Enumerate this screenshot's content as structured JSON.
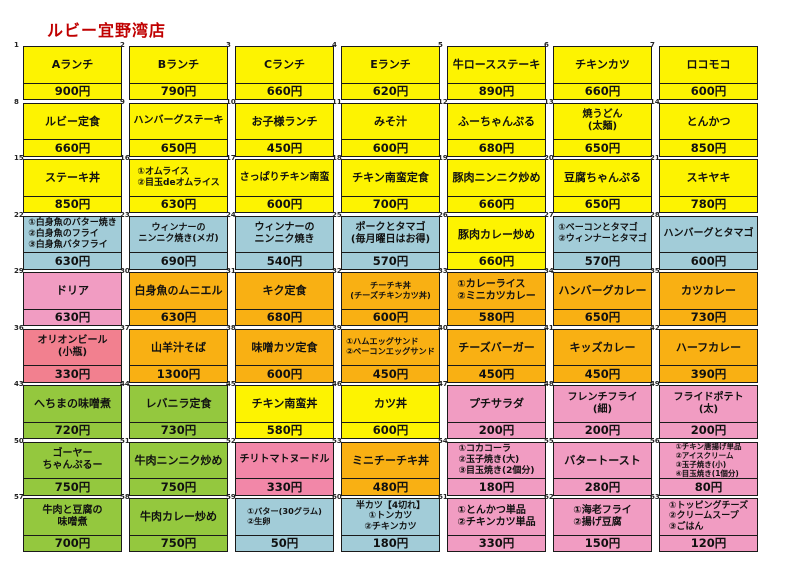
{
  "title": "ルビー宜野湾店",
  "palette": {
    "title_color": "#c00000",
    "border_color": "#1a1a1a",
    "yellow": "#fdf301",
    "cyan": "#a2ccd8",
    "orange": "#f9b013",
    "green": "#94c83e",
    "pink": "#f19cc2",
    "salmon": "#f2808f",
    "hotpink": "#f287a8"
  },
  "cells": [
    {
      "no": 1,
      "name": "Aランチ",
      "price": "900円",
      "color": "yellow"
    },
    {
      "no": 2,
      "name": "Bランチ",
      "price": "790円",
      "color": "yellow"
    },
    {
      "no": 3,
      "name": "Cランチ",
      "price": "660円",
      "color": "yellow"
    },
    {
      "no": 4,
      "name": "Eランチ",
      "price": "620円",
      "color": "yellow"
    },
    {
      "no": 5,
      "name": "牛ロースステーキ",
      "price": "890円",
      "color": "yellow"
    },
    {
      "no": 6,
      "name": "チキンカツ",
      "price": "660円",
      "color": "yellow"
    },
    {
      "no": 7,
      "name": "ロコモコ",
      "price": "600円",
      "color": "yellow"
    },
    {
      "no": 8,
      "name": "ルビー定食",
      "price": "660円",
      "color": "yellow"
    },
    {
      "no": 9,
      "name": "ハンバーグステーキ",
      "price": "650円",
      "color": "yellow"
    },
    {
      "no": 10,
      "name": "お子様ランチ",
      "price": "450円",
      "color": "yellow"
    },
    {
      "no": 11,
      "name": "みそ汁",
      "price": "600円",
      "color": "yellow"
    },
    {
      "no": 12,
      "name": "ふーちゃんぷる",
      "price": "680円",
      "color": "yellow"
    },
    {
      "no": 13,
      "name": "焼うどん\n(太麺)",
      "price": "650円",
      "color": "yellow"
    },
    {
      "no": 14,
      "name": "とんかつ",
      "price": "850円",
      "color": "yellow"
    },
    {
      "no": 15,
      "name": "ステーキ丼",
      "price": "850円",
      "color": "yellow"
    },
    {
      "no": 16,
      "name": "①オムライス\n②目玉deオムライス",
      "price": "630円",
      "color": "yellow"
    },
    {
      "no": 17,
      "name": "さっぱりチキン南蛮",
      "price": "600円",
      "color": "yellow"
    },
    {
      "no": 18,
      "name": "チキン南蛮定食",
      "price": "700円",
      "color": "yellow"
    },
    {
      "no": 19,
      "name": "豚肉ニンニク炒め",
      "price": "660円",
      "color": "yellow"
    },
    {
      "no": 20,
      "name": "豆腐ちゃんぷる",
      "price": "650円",
      "color": "yellow"
    },
    {
      "no": 21,
      "name": "スキヤキ",
      "price": "780円",
      "color": "yellow"
    },
    {
      "no": 22,
      "name": "①白身魚のバター焼き\n②白身魚のフライ\n③白身魚バタフライ",
      "price": "630円",
      "color": "cyan"
    },
    {
      "no": 23,
      "name": "ウィンナーの\nニンニク焼き(メガ)",
      "price": "690円",
      "color": "cyan"
    },
    {
      "no": 24,
      "name": "ウィンナーの\nニンニク焼き",
      "price": "540円",
      "color": "cyan"
    },
    {
      "no": 25,
      "name": "ポークとタマゴ\n(毎月曜日はお得)",
      "price": "570円",
      "color": "cyan"
    },
    {
      "no": 26,
      "name": "豚肉カレー炒め",
      "price": "660円",
      "color": "yellow"
    },
    {
      "no": 27,
      "name": "①ベーコンとタマゴ\n②ウィンナーとタマゴ",
      "price": "570円",
      "color": "cyan"
    },
    {
      "no": 28,
      "name": "ハンバーグとタマゴ",
      "price": "600円",
      "color": "cyan"
    },
    {
      "no": 29,
      "name": "ドリア",
      "price": "630円",
      "color": "pink"
    },
    {
      "no": 30,
      "name": "白身魚のムニエル",
      "price": "630円",
      "color": "orange"
    },
    {
      "no": 31,
      "name": "キク定食",
      "price": "680円",
      "color": "orange"
    },
    {
      "no": 32,
      "name": "チーチキ丼\n(チーズチキンカツ丼)",
      "price": "600円",
      "color": "orange"
    },
    {
      "no": 33,
      "name": "①カレーライス\n②ミニカツカレー",
      "price": "580円",
      "color": "orange"
    },
    {
      "no": 34,
      "name": "ハンバーグカレー",
      "price": "650円",
      "color": "orange"
    },
    {
      "no": 35,
      "name": "カツカレー",
      "price": "730円",
      "color": "orange"
    },
    {
      "no": 36,
      "name": "オリオンビール\n(小瓶)",
      "price": "330円",
      "color": "salmon"
    },
    {
      "no": 37,
      "name": "山羊汁そば",
      "price": "1300円",
      "color": "orange"
    },
    {
      "no": 38,
      "name": "味噌カツ定食",
      "price": "600円",
      "color": "orange"
    },
    {
      "no": 39,
      "name": "①ハムエッグサンド\n②ベーコンエッグサンド",
      "price": "450円",
      "color": "orange"
    },
    {
      "no": 40,
      "name": "チーズバーガー",
      "price": "450円",
      "color": "orange"
    },
    {
      "no": 41,
      "name": "キッズカレー",
      "price": "450円",
      "color": "orange"
    },
    {
      "no": 42,
      "name": "ハーフカレー",
      "price": "390円",
      "color": "orange"
    },
    {
      "no": 43,
      "name": "へちまの味噌煮",
      "price": "720円",
      "color": "green"
    },
    {
      "no": 44,
      "name": "レバニラ定食",
      "price": "730円",
      "color": "green"
    },
    {
      "no": 45,
      "name": "チキン南蛮丼",
      "price": "580円",
      "color": "yellow"
    },
    {
      "no": 46,
      "name": "カツ丼",
      "price": "600円",
      "color": "yellow"
    },
    {
      "no": 47,
      "name": "プチサラダ",
      "price": "200円",
      "color": "pink"
    },
    {
      "no": 48,
      "name": "フレンチフライ\n(細)",
      "price": "200円",
      "color": "pink"
    },
    {
      "no": 49,
      "name": "フライドポテト\n(太)",
      "price": "200円",
      "color": "pink"
    },
    {
      "no": 50,
      "name": "ゴーヤー\nちゃんぷるー",
      "price": "750円",
      "color": "green"
    },
    {
      "no": 51,
      "name": "牛肉ニンニク炒め",
      "price": "750円",
      "color": "green"
    },
    {
      "no": 52,
      "name": "チリトマトヌードル",
      "price": "330円",
      "color": "hotpink"
    },
    {
      "no": 53,
      "name": "ミニチーチキ丼",
      "price": "480円",
      "color": "orange"
    },
    {
      "no": 54,
      "name": "①コカコーラ\n②玉子焼き(大)\n③目玉焼き(2個分)",
      "price": "180円",
      "color": "pink"
    },
    {
      "no": 55,
      "name": "バタートースト",
      "price": "280円",
      "color": "pink"
    },
    {
      "no": 56,
      "name": "①チキン唐揚げ単品\n②アイスクリーム\n③玉子焼き(小)\n④目玉焼き(1個分)",
      "price": "80円",
      "color": "pink"
    },
    {
      "no": 57,
      "name": "牛肉と豆腐の\n味噌煮",
      "price": "700円",
      "color": "green"
    },
    {
      "no": 58,
      "name": "牛肉カレー炒め",
      "price": "750円",
      "color": "green"
    },
    {
      "no": 59,
      "name": "①バター(30グラム)\n②生卵",
      "price": "50円",
      "color": "cyan"
    },
    {
      "no": 60,
      "name": "半カツ【4切れ】\n①トンカツ\n②チキンカツ",
      "price": "180円",
      "color": "cyan"
    },
    {
      "no": 61,
      "name": "①とんかつ単品\n②チキンカツ単品",
      "price": "330円",
      "color": "pink"
    },
    {
      "no": 62,
      "name": "①海老フライ\n②揚げ豆腐",
      "price": "150円",
      "color": "pink"
    },
    {
      "no": 63,
      "name": "①トッピングチーズ\n②クリームスープ\n③ごはん",
      "price": "120円",
      "color": "pink"
    }
  ]
}
